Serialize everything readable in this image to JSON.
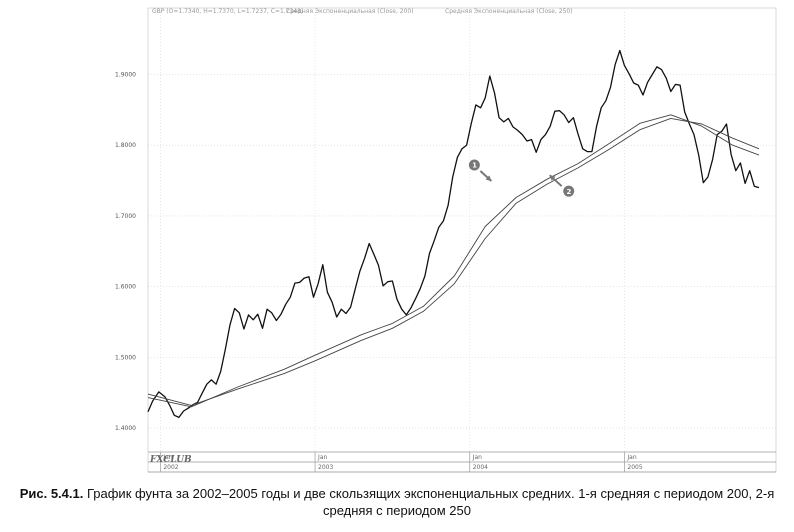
{
  "chart_data": {
    "type": "line",
    "header": {
      "symbol": "GBP",
      "ohlc": "O=1.7340, H=1.7370, L=1.7237, C=1.7348",
      "ma1_label": "Средняя Экспоненциальная",
      "ma1_params": "(Close, 200)",
      "ma2_label": "Средняя Экспоненциальная",
      "ma2_params": "(Close, 250)"
    },
    "y_ticks": [
      "1.9000",
      "1.8000",
      "1.7000",
      "1.6000",
      "1.5000",
      "1.4000"
    ],
    "y_tick_values": [
      1.9,
      1.8,
      1.7,
      1.6,
      1.5,
      1.4
    ],
    "ylim": [
      1.383,
      1.98
    ],
    "x_ticks_upper": [
      "Jan",
      "Jan",
      "Jan",
      "Jan"
    ],
    "x_ticks_lower": [
      "2002",
      "2003",
      "2004",
      "2005"
    ],
    "x_tick_positions": [
      2002.0,
      2003.0,
      2004.0,
      2005.0
    ],
    "xlim": [
      2001.92,
      2005.98
    ],
    "series": [
      {
        "key": "price",
        "color": "#111111",
        "points": [
          [
            2001.92,
            1.423
          ],
          [
            2001.95,
            1.438
          ],
          [
            2001.99,
            1.451
          ],
          [
            2002.03,
            1.444
          ],
          [
            2002.06,
            1.432
          ],
          [
            2002.09,
            1.418
          ],
          [
            2002.12,
            1.415
          ],
          [
            2002.15,
            1.424
          ],
          [
            2002.18,
            1.428
          ],
          [
            2002.21,
            1.433
          ],
          [
            2002.24,
            1.436
          ],
          [
            2002.27,
            1.449
          ],
          [
            2002.3,
            1.462
          ],
          [
            2002.33,
            1.468
          ],
          [
            2002.36,
            1.462
          ],
          [
            2002.39,
            1.48
          ],
          [
            2002.42,
            1.511
          ],
          [
            2002.45,
            1.546
          ],
          [
            2002.48,
            1.569
          ],
          [
            2002.51,
            1.563
          ],
          [
            2002.54,
            1.54
          ],
          [
            2002.57,
            1.56
          ],
          [
            2002.6,
            1.553
          ],
          [
            2002.63,
            1.561
          ],
          [
            2002.66,
            1.541
          ],
          [
            2002.69,
            1.568
          ],
          [
            2002.72,
            1.563
          ],
          [
            2002.75,
            1.552
          ],
          [
            2002.78,
            1.561
          ],
          [
            2002.81,
            1.575
          ],
          [
            2002.84,
            1.585
          ],
          [
            2002.87,
            1.605
          ],
          [
            2002.9,
            1.606
          ],
          [
            2002.93,
            1.612
          ],
          [
            2002.96,
            1.614
          ],
          [
            2002.99,
            1.585
          ],
          [
            2003.02,
            1.604
          ],
          [
            2003.05,
            1.631
          ],
          [
            2003.08,
            1.592
          ],
          [
            2003.11,
            1.578
          ],
          [
            2003.14,
            1.557
          ],
          [
            2003.17,
            1.568
          ],
          [
            2003.2,
            1.562
          ],
          [
            2003.23,
            1.571
          ],
          [
            2003.26,
            1.597
          ],
          [
            2003.29,
            1.622
          ],
          [
            2003.32,
            1.64
          ],
          [
            2003.35,
            1.661
          ],
          [
            2003.38,
            1.646
          ],
          [
            2003.41,
            1.63
          ],
          [
            2003.44,
            1.601
          ],
          [
            2003.47,
            1.607
          ],
          [
            2003.5,
            1.608
          ],
          [
            2003.53,
            1.582
          ],
          [
            2003.56,
            1.568
          ],
          [
            2003.59,
            1.56
          ],
          [
            2003.62,
            1.57
          ],
          [
            2003.65,
            1.583
          ],
          [
            2003.68,
            1.597
          ],
          [
            2003.71,
            1.615
          ],
          [
            2003.74,
            1.647
          ],
          [
            2003.77,
            1.665
          ],
          [
            2003.8,
            1.684
          ],
          [
            2003.83,
            1.693
          ],
          [
            2003.86,
            1.715
          ],
          [
            2003.89,
            1.755
          ],
          [
            2003.92,
            1.783
          ],
          [
            2003.95,
            1.795
          ],
          [
            2003.98,
            1.8
          ],
          [
            2004.01,
            1.831
          ],
          [
            2004.04,
            1.857
          ],
          [
            2004.07,
            1.853
          ],
          [
            2004.1,
            1.867
          ],
          [
            2004.13,
            1.898
          ],
          [
            2004.16,
            1.874
          ],
          [
            2004.19,
            1.839
          ],
          [
            2004.22,
            1.833
          ],
          [
            2004.25,
            1.838
          ],
          [
            2004.28,
            1.826
          ],
          [
            2004.31,
            1.821
          ],
          [
            2004.34,
            1.815
          ],
          [
            2004.37,
            1.806
          ],
          [
            2004.4,
            1.808
          ],
          [
            2004.43,
            1.79
          ],
          [
            2004.46,
            1.808
          ],
          [
            2004.49,
            1.815
          ],
          [
            2004.52,
            1.827
          ],
          [
            2004.55,
            1.848
          ],
          [
            2004.58,
            1.849
          ],
          [
            2004.61,
            1.843
          ],
          [
            2004.64,
            1.832
          ],
          [
            2004.67,
            1.839
          ],
          [
            2004.7,
            1.816
          ],
          [
            2004.73,
            1.795
          ],
          [
            2004.76,
            1.791
          ],
          [
            2004.79,
            1.791
          ],
          [
            2004.82,
            1.827
          ],
          [
            2004.85,
            1.853
          ],
          [
            2004.88,
            1.863
          ],
          [
            2004.91,
            1.882
          ],
          [
            2004.94,
            1.914
          ],
          [
            2004.97,
            1.934
          ],
          [
            2005.0,
            1.913
          ],
          [
            2005.03,
            1.901
          ],
          [
            2005.06,
            1.888
          ],
          [
            2005.09,
            1.885
          ],
          [
            2005.12,
            1.871
          ],
          [
            2005.15,
            1.889
          ],
          [
            2005.18,
            1.9
          ],
          [
            2005.21,
            1.911
          ],
          [
            2005.24,
            1.907
          ],
          [
            2005.27,
            1.895
          ],
          [
            2005.3,
            1.876
          ],
          [
            2005.33,
            1.886
          ],
          [
            2005.36,
            1.885
          ],
          [
            2005.39,
            1.847
          ],
          [
            2005.42,
            1.83
          ],
          [
            2005.45,
            1.815
          ],
          [
            2005.48,
            1.786
          ],
          [
            2005.51,
            1.747
          ],
          [
            2005.54,
            1.755
          ],
          [
            2005.57,
            1.78
          ],
          [
            2005.6,
            1.815
          ],
          [
            2005.63,
            1.82
          ],
          [
            2005.66,
            1.83
          ],
          [
            2005.69,
            1.787
          ],
          [
            2005.72,
            1.764
          ],
          [
            2005.75,
            1.775
          ],
          [
            2005.78,
            1.746
          ],
          [
            2005.81,
            1.764
          ],
          [
            2005.84,
            1.742
          ],
          [
            2005.87,
            1.74
          ]
        ]
      },
      {
        "key": "ema200",
        "color": "#444444",
        "points": [
          [
            2001.92,
            1.443
          ],
          [
            2002.2,
            1.43
          ],
          [
            2002.5,
            1.458
          ],
          [
            2002.8,
            1.483
          ],
          [
            2003.0,
            1.503
          ],
          [
            2003.3,
            1.532
          ],
          [
            2003.5,
            1.548
          ],
          [
            2003.7,
            1.572
          ],
          [
            2003.9,
            1.615
          ],
          [
            2004.1,
            1.685
          ],
          [
            2004.3,
            1.726
          ],
          [
            2004.5,
            1.752
          ],
          [
            2004.7,
            1.774
          ],
          [
            2004.9,
            1.802
          ],
          [
            2005.1,
            1.831
          ],
          [
            2005.3,
            1.843
          ],
          [
            2005.5,
            1.827
          ],
          [
            2005.7,
            1.8
          ],
          [
            2005.87,
            1.786
          ]
        ]
      },
      {
        "key": "ema250",
        "color": "#444444",
        "points": [
          [
            2001.92,
            1.448
          ],
          [
            2002.2,
            1.432
          ],
          [
            2002.5,
            1.455
          ],
          [
            2002.8,
            1.477
          ],
          [
            2003.0,
            1.495
          ],
          [
            2003.3,
            1.524
          ],
          [
            2003.5,
            1.541
          ],
          [
            2003.7,
            1.565
          ],
          [
            2003.9,
            1.604
          ],
          [
            2004.1,
            1.668
          ],
          [
            2004.3,
            1.718
          ],
          [
            2004.5,
            1.745
          ],
          [
            2004.7,
            1.768
          ],
          [
            2004.9,
            1.794
          ],
          [
            2005.1,
            1.822
          ],
          [
            2005.3,
            1.838
          ],
          [
            2005.5,
            1.83
          ],
          [
            2005.7,
            1.81
          ],
          [
            2005.87,
            1.795
          ]
        ]
      }
    ],
    "annotations": [
      {
        "number": "1",
        "value": [
          2004.03,
          1.772
        ]
      },
      {
        "number": "2",
        "value": [
          2004.64,
          1.735
        ]
      }
    ],
    "watermark": "FXCLUB"
  },
  "caption": {
    "label": "Рис. 5.4.1.",
    "text": " График фунта за 2002–2005 годы и две скользящих экспоненциальных средних. 1-я средняя с периодом 200, 2-я средняя с периодом 250"
  }
}
